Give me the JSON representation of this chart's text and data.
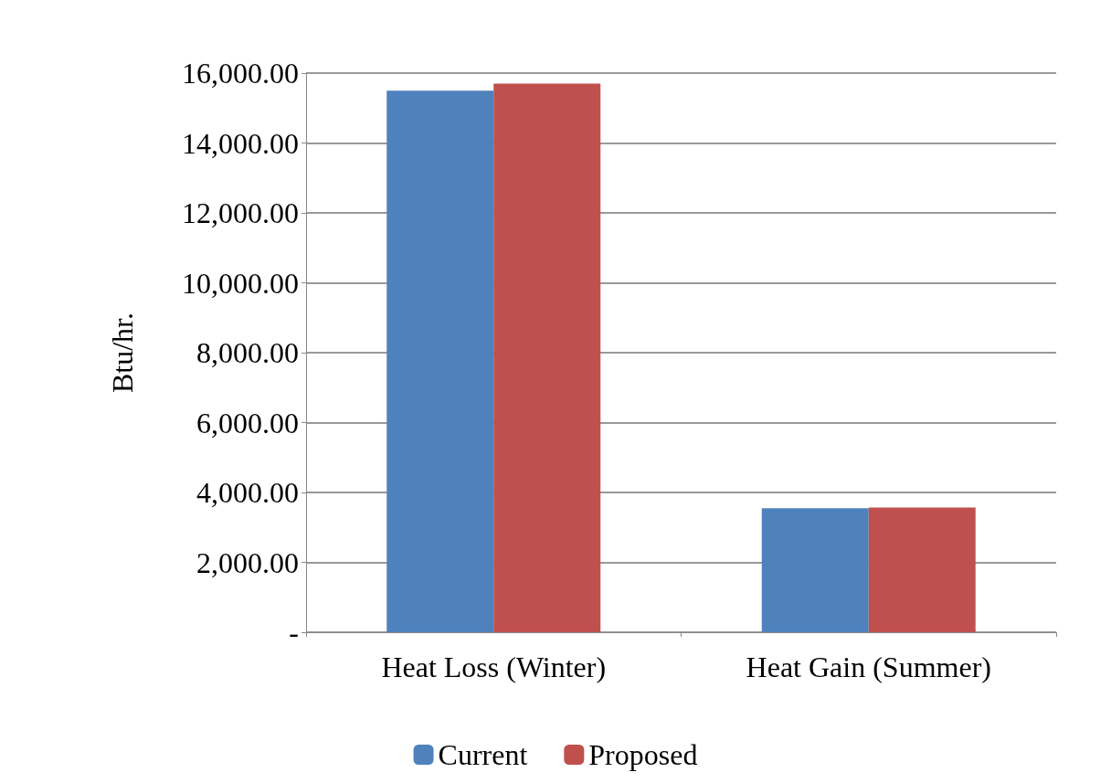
{
  "chart_data": {
    "type": "bar",
    "ylabel": "Btu/hr.",
    "categories": [
      "Heat Loss (Winter)",
      "Heat Gain (Summer)"
    ],
    "series": [
      {
        "name": "Current",
        "color": "#4f81bd",
        "values": [
          15500,
          3550
        ]
      },
      {
        "name": "Proposed",
        "color": "#c0504d",
        "values": [
          15700,
          3570
        ]
      }
    ],
    "ylim": [
      0,
      16000
    ],
    "yticks": [
      {
        "value": 0,
        "label": "-"
      },
      {
        "value": 2000,
        "label": "2,000.00"
      },
      {
        "value": 4000,
        "label": "4,000.00"
      },
      {
        "value": 6000,
        "label": "6,000.00"
      },
      {
        "value": 8000,
        "label": "8,000.00"
      },
      {
        "value": 10000,
        "label": "10,000.00"
      },
      {
        "value": 12000,
        "label": "12,000.00"
      },
      {
        "value": 14000,
        "label": "14,000.00"
      },
      {
        "value": 16000,
        "label": "16,000.00"
      }
    ],
    "grid": "y",
    "legend": "bottom"
  }
}
